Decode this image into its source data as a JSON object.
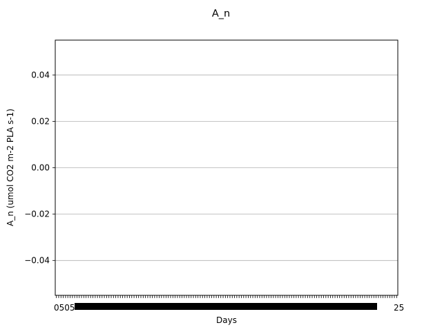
{
  "chart_data": {
    "type": "line",
    "title": "A_n",
    "xlabel": "Days",
    "ylabel": "A_n (umol CO2 m-2 PLA s-1)",
    "ylim": [
      -0.055,
      0.055
    ],
    "yticks": [
      0.04,
      0.02,
      0.0,
      -0.02,
      -0.04
    ],
    "ytick_labels": [
      "0.04",
      "0.02",
      "0.00",
      "−0.02",
      "−0.04"
    ],
    "y_grid": true,
    "x_tick_count": 150,
    "x_tick_labels_left": "0505",
    "x_tick_labels_right": "25",
    "series": []
  }
}
